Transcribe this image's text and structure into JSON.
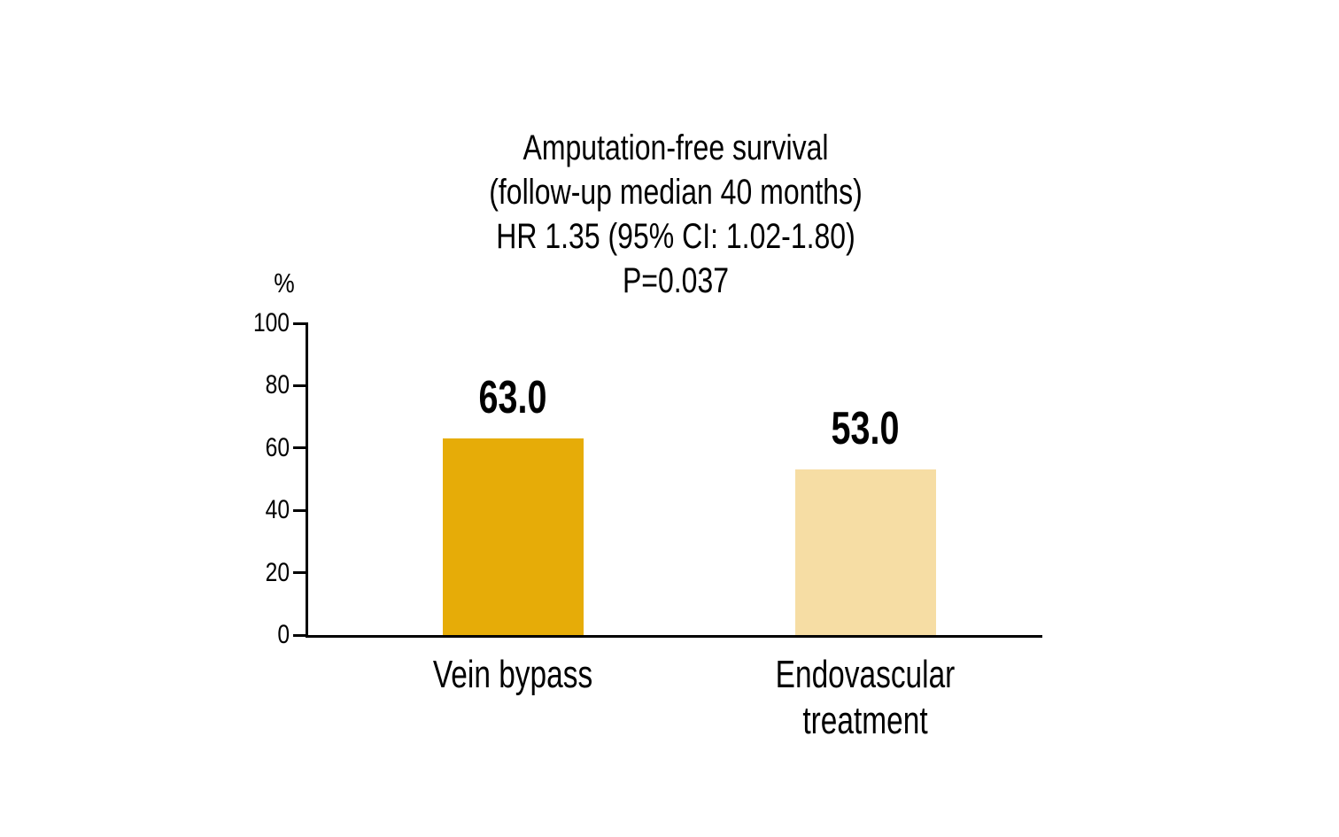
{
  "chart_data": {
    "type": "bar",
    "title_lines": [
      "Amputation-free survival",
      "(follow-up median 40 months)",
      "HR 1.35 (95% CI: 1.02-1.80)",
      "P=0.037"
    ],
    "ylabel": "%",
    "ylim": [
      0,
      100
    ],
    "yticks": [
      0,
      20,
      40,
      60,
      80,
      100
    ],
    "categories": [
      "Vein bypass",
      "Endovascular\ntreatment"
    ],
    "values": [
      63.0,
      53.0
    ],
    "value_labels": [
      "63.0",
      "53.0"
    ],
    "bar_colors": [
      "#E6AC08",
      "#F6DDA4"
    ],
    "axis_color": "#000000",
    "text_color": "#000000",
    "grid": false,
    "legend": false
  }
}
